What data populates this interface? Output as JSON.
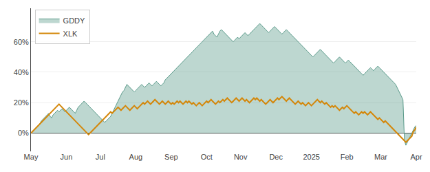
{
  "chart_data": {
    "type": "line",
    "categories": [
      "May",
      null,
      null,
      null,
      null,
      null,
      null,
      null,
      null,
      null,
      null,
      null,
      null,
      null,
      null,
      null,
      null,
      null,
      null,
      null,
      null,
      null,
      null,
      null,
      "Jun",
      null,
      null,
      null,
      null,
      null,
      null,
      null,
      null,
      null,
      null,
      null,
      null,
      null,
      null,
      null,
      null,
      null,
      null,
      null,
      null,
      null,
      null,
      "Jul",
      null,
      null,
      null,
      null,
      null,
      null,
      null,
      null,
      null,
      null,
      null,
      null,
      null,
      null,
      null,
      null,
      null,
      null,
      null,
      null,
      null,
      null,
      null,
      "Aug",
      null,
      null,
      null,
      null,
      null,
      null,
      null,
      null,
      null,
      null,
      null,
      null,
      null,
      null,
      null,
      null,
      null,
      null,
      null,
      null,
      null,
      null,
      null,
      "Sep",
      null,
      null,
      null,
      null,
      null,
      null,
      null,
      null,
      null,
      null,
      null,
      null,
      null,
      null,
      null,
      null,
      null,
      null,
      null,
      null,
      null,
      null,
      null,
      "Oct",
      null,
      null,
      null,
      null,
      null,
      null,
      null,
      null,
      null,
      null,
      null,
      null,
      null,
      null,
      null,
      null,
      null,
      null,
      null,
      null,
      null,
      null,
      "Nov",
      null,
      null,
      null,
      null,
      null,
      null,
      null,
      null,
      null,
      null,
      null,
      null,
      null,
      null,
      null,
      null,
      null,
      null,
      null,
      null,
      null,
      null,
      null,
      "Dec",
      null,
      null,
      null,
      null,
      null,
      null,
      null,
      null,
      null,
      null,
      null,
      null,
      null,
      null,
      null,
      null,
      null,
      null,
      null,
      null,
      null,
      null,
      null,
      "2025",
      null,
      null,
      null,
      null,
      null,
      null,
      null,
      null,
      null,
      null,
      null,
      null,
      null,
      null,
      null,
      null,
      null,
      null,
      null,
      null,
      null,
      null,
      null,
      "Feb",
      null,
      null,
      null,
      null,
      null,
      null,
      null,
      null,
      null,
      null,
      null,
      null,
      null,
      null,
      null,
      null,
      null,
      null,
      null,
      null,
      null,
      null,
      "Mar",
      null,
      null,
      null,
      null,
      null,
      null,
      null,
      null,
      null,
      null,
      null,
      null,
      null,
      null,
      null,
      null,
      null,
      null,
      null,
      null,
      null,
      null,
      null,
      "Apr"
    ],
    "series": [
      {
        "name": "GDDY",
        "type": "area",
        "color": "#5a9a8a",
        "values": [
          0,
          1,
          2,
          3,
          4,
          5,
          6,
          8,
          9,
          10,
          11,
          12,
          13,
          11,
          10,
          12,
          13,
          14,
          15,
          14,
          15,
          16,
          15,
          14,
          15,
          16,
          17,
          16,
          15,
          14,
          13,
          15,
          17,
          18,
          19,
          20,
          21,
          20,
          19,
          18,
          17,
          16,
          15,
          14,
          13,
          12,
          11,
          10,
          9,
          8,
          7,
          8,
          9,
          10,
          11,
          13,
          15,
          17,
          19,
          21,
          23,
          25,
          27,
          28,
          30,
          32,
          31,
          30,
          29,
          28,
          27,
          28,
          29,
          30,
          31,
          32,
          31,
          30,
          31,
          32,
          33,
          32,
          31,
          32,
          33,
          34,
          33,
          32,
          31,
          32,
          33,
          35,
          36,
          37,
          38,
          39,
          40,
          41,
          42,
          43,
          44,
          45,
          46,
          47,
          48,
          49,
          50,
          51,
          52,
          53,
          54,
          55,
          56,
          57,
          58,
          59,
          60,
          61,
          62,
          63,
          64,
          65,
          66,
          67,
          65,
          64,
          63,
          65,
          67,
          68,
          67,
          66,
          65,
          64,
          63,
          62,
          61,
          60,
          61,
          62,
          63,
          62,
          63,
          64,
          65,
          66,
          65,
          64,
          65,
          66,
          67,
          68,
          69,
          70,
          71,
          72,
          71,
          70,
          69,
          68,
          67,
          66,
          67,
          68,
          69,
          70,
          69,
          68,
          67,
          66,
          65,
          66,
          67,
          68,
          67,
          66,
          65,
          64,
          63,
          62,
          61,
          60,
          59,
          58,
          57,
          56,
          55,
          54,
          53,
          52,
          51,
          50,
          51,
          52,
          53,
          54,
          55,
          54,
          53,
          52,
          51,
          50,
          49,
          48,
          47,
          46,
          47,
          48,
          49,
          50,
          49,
          48,
          47,
          46,
          47,
          48,
          47,
          46,
          45,
          44,
          43,
          42,
          41,
          40,
          39,
          38,
          39,
          40,
          41,
          42,
          43,
          42,
          41,
          42,
          43,
          44,
          43,
          42,
          41,
          40,
          39,
          38,
          37,
          36,
          35,
          34,
          33,
          32,
          30,
          28,
          26,
          24,
          22,
          -5,
          -8,
          -6,
          -4,
          -2,
          0,
          2,
          4,
          5
        ]
      },
      {
        "name": "XLK",
        "type": "line",
        "color": "#d4870a",
        "values": [
          0,
          1,
          2,
          3,
          4,
          5,
          6,
          7,
          8,
          9,
          10,
          11,
          12,
          13,
          14,
          15,
          16,
          17,
          18,
          19,
          18,
          17,
          16,
          15,
          14,
          13,
          12,
          11,
          10,
          9,
          8,
          7,
          6,
          5,
          4,
          3,
          2,
          1,
          0,
          -1,
          0,
          1,
          2,
          3,
          4,
          5,
          6,
          7,
          8,
          9,
          10,
          11,
          12,
          13,
          14,
          13,
          14,
          15,
          16,
          17,
          16,
          15,
          16,
          17,
          18,
          17,
          16,
          15,
          16,
          17,
          18,
          17,
          16,
          17,
          18,
          19,
          20,
          19,
          20,
          21,
          20,
          19,
          20,
          21,
          22,
          21,
          20,
          19,
          20,
          21,
          20,
          19,
          20,
          21,
          20,
          19,
          20,
          19,
          20,
          21,
          20,
          21,
          20,
          19,
          20,
          21,
          20,
          21,
          20,
          19,
          20,
          19,
          18,
          19,
          20,
          19,
          18,
          19,
          20,
          21,
          20,
          21,
          22,
          21,
          20,
          19,
          20,
          21,
          20,
          21,
          22,
          21,
          22,
          23,
          22,
          21,
          20,
          21,
          22,
          23,
          22,
          21,
          22,
          23,
          22,
          21,
          22,
          21,
          20,
          21,
          22,
          23,
          22,
          23,
          22,
          21,
          22,
          21,
          20,
          19,
          20,
          21,
          22,
          21,
          20,
          21,
          22,
          23,
          22,
          23,
          24,
          23,
          22,
          21,
          22,
          23,
          22,
          21,
          20,
          19,
          20,
          21,
          20,
          19,
          20,
          19,
          18,
          19,
          20,
          19,
          18,
          19,
          20,
          21,
          22,
          21,
          20,
          21,
          20,
          19,
          20,
          19,
          18,
          17,
          18,
          17,
          18,
          17,
          16,
          15,
          16,
          17,
          16,
          17,
          18,
          17,
          16,
          15,
          14,
          13,
          14,
          13,
          12,
          13,
          14,
          13,
          14,
          13,
          12,
          13,
          14,
          13,
          12,
          11,
          10,
          9,
          10,
          9,
          8,
          7,
          8,
          7,
          6,
          5,
          4,
          3,
          2,
          1,
          0,
          -1,
          -2,
          -3,
          -4,
          -5,
          -6,
          -5,
          -4,
          -3,
          -2,
          1,
          2,
          4
        ]
      }
    ],
    "ylim": [
      -12,
      82
    ],
    "yticks": [
      {
        "value": 0,
        "label": "0%"
      },
      {
        "value": 20,
        "label": "20%"
      },
      {
        "value": 40,
        "label": "40%"
      },
      {
        "value": 60,
        "label": "60%"
      }
    ],
    "grid": true,
    "legend": "upper left"
  }
}
